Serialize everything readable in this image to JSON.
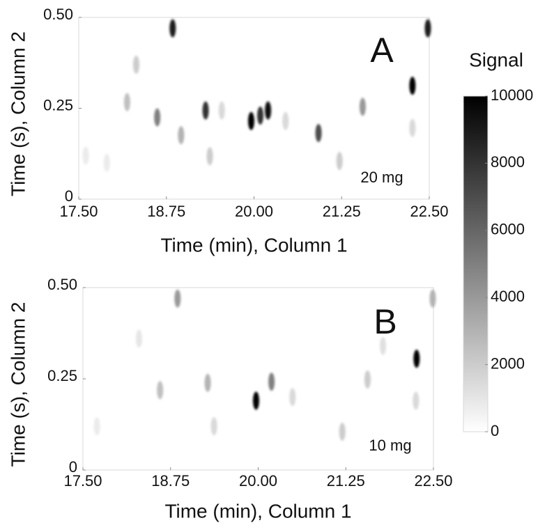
{
  "chart_data": [
    {
      "type": "heatmap",
      "panel": "A",
      "annotation": "20 mg",
      "xlabel": "Time (min), Column 1",
      "ylabel": "Time (s), Column 2",
      "xlim": [
        17.5,
        22.5
      ],
      "xticks": [
        {
          "value": 17.5,
          "label": "17.50"
        },
        {
          "value": 18.75,
          "label": "18.75"
        },
        {
          "value": 20,
          "label": "20.00"
        },
        {
          "value": 21.25,
          "label": "21.25"
        },
        {
          "value": 22.5,
          "label": "22.50"
        }
      ],
      "ylim": [
        0,
        0.5
      ],
      "yticks": [
        0,
        0.25,
        {
          "value": 0.5,
          "label": "0.50"
        }
      ],
      "x": [
        18.84,
        22.48,
        22.26,
        19.96,
        20.2,
        20.09,
        19.31,
        18.62,
        20.92,
        21.55,
        18.19,
        19.54,
        18.32,
        19.37,
        18.96,
        21.22,
        20.45,
        22.26,
        17.6,
        17.9
      ],
      "y": [
        0.47,
        0.47,
        0.312,
        0.215,
        0.244,
        0.23,
        0.244,
        0.225,
        0.182,
        0.254,
        0.267,
        0.244,
        0.37,
        0.118,
        0.176,
        0.105,
        0.215,
        0.196,
        0.12,
        0.1
      ],
      "values": [
        9000,
        9000,
        10000,
        10000,
        9500,
        8000,
        8000,
        5000,
        7000,
        4000,
        2500,
        1500,
        2000,
        2000,
        3000,
        2000,
        1500,
        1500,
        800,
        800
      ]
    },
    {
      "type": "heatmap",
      "panel": "B",
      "annotation": "10 mg",
      "xlabel": "Time (min), Column 1",
      "ylabel": "Time (s), Column 2",
      "xlim": [
        17.5,
        22.5
      ],
      "xticks": [
        {
          "value": 17.5,
          "label": "17.50"
        },
        {
          "value": 18.75,
          "label": "18.75"
        },
        {
          "value": 20,
          "label": "20.00"
        },
        {
          "value": 21.25,
          "label": "21.25"
        },
        {
          "value": 22.5,
          "label": "22.50"
        }
      ],
      "ylim": [
        0,
        0.5
      ],
      "yticks": [
        0,
        0.25,
        {
          "value": 0.5,
          "label": "0.50"
        }
      ],
      "x": [
        18.85,
        22.49,
        22.26,
        19.97,
        20.19,
        19.28,
        18.6,
        20.49,
        21.56,
        21.2,
        19.37,
        22.25,
        17.7,
        18.3,
        21.78
      ],
      "y": [
        0.47,
        0.47,
        0.305,
        0.19,
        0.242,
        0.239,
        0.219,
        0.2,
        0.248,
        0.105,
        0.12,
        0.19,
        0.12,
        0.36,
        0.34
      ],
      "values": [
        4000,
        3000,
        10000,
        10000,
        5000,
        3000,
        2500,
        1500,
        2000,
        2000,
        1500,
        1500,
        800,
        1000,
        1200
      ]
    }
  ],
  "colorbar": {
    "title": "Signal",
    "clim": [
      0,
      10000
    ],
    "ticks": [
      0,
      2000,
      4000,
      6000,
      8000,
      10000
    ],
    "colors": [
      "#ffffff",
      "#000000"
    ]
  }
}
